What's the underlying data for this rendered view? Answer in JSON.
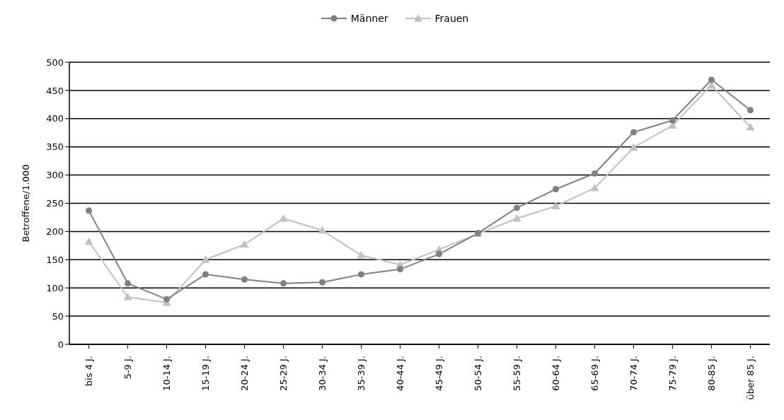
{
  "chart_data": {
    "type": "line",
    "ylabel": "Betroffene/1.000",
    "categories": [
      "bis 4 J.",
      "5-9 J.",
      "10-14 J.",
      "15-19 J.",
      "20-24 J.",
      "25-29 J.",
      "30-34 J.",
      "35-39 J.",
      "40-44 J.",
      "45-49 J.",
      "50-54 J.",
      "55-59 J.",
      "60-64 J.",
      "65-69 J.",
      "70-74 J.",
      "75-79 J.",
      "80-85 J.",
      "über 85 J."
    ],
    "series": [
      {
        "name": "Männer",
        "color": "#808080",
        "marker": "circle",
        "values": [
          237,
          108,
          80,
          124,
          115,
          108,
          110,
          124,
          133,
          160,
          197,
          242,
          275,
          303,
          376,
          397,
          469,
          415
        ]
      },
      {
        "name": "Frauen",
        "color": "#c0c0c0",
        "marker": "triangle",
        "values": [
          182,
          84,
          74,
          150,
          177,
          223,
          202,
          158,
          141,
          168,
          196,
          223,
          245,
          277,
          349,
          388,
          459,
          385
        ]
      }
    ],
    "ylim": [
      0,
      500
    ],
    "yticks": [
      0,
      50,
      100,
      150,
      200,
      250,
      300,
      350,
      400,
      450,
      500
    ],
    "grid": "y",
    "legend": "top"
  }
}
